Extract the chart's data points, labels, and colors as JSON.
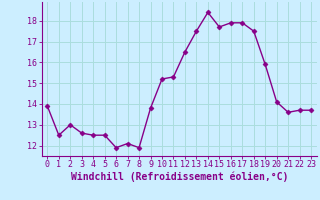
{
  "x": [
    0,
    1,
    2,
    3,
    4,
    5,
    6,
    7,
    8,
    9,
    10,
    11,
    12,
    13,
    14,
    15,
    16,
    17,
    18,
    19,
    20,
    21,
    22,
    23
  ],
  "y": [
    13.9,
    12.5,
    13.0,
    12.6,
    12.5,
    12.5,
    11.9,
    12.1,
    11.9,
    13.8,
    15.2,
    15.3,
    16.5,
    17.5,
    18.4,
    17.7,
    17.9,
    17.9,
    17.5,
    15.9,
    14.1,
    13.6,
    13.7,
    13.7
  ],
  "line_color": "#880088",
  "marker": "D",
  "marker_size": 2.5,
  "bg_color": "#cceeff",
  "grid_color": "#aadddd",
  "xlabel": "Windchill (Refroidissement éolien,°C)",
  "xlabel_fontsize": 7,
  "yticks": [
    12,
    13,
    14,
    15,
    16,
    17,
    18
  ],
  "xticks": [
    0,
    1,
    2,
    3,
    4,
    5,
    6,
    7,
    8,
    9,
    10,
    11,
    12,
    13,
    14,
    15,
    16,
    17,
    18,
    19,
    20,
    21,
    22,
    23
  ],
  "ylim": [
    11.5,
    18.9
  ],
  "xlim": [
    -0.5,
    23.5
  ],
  "tick_fontsize": 6,
  "line_width": 1.0
}
